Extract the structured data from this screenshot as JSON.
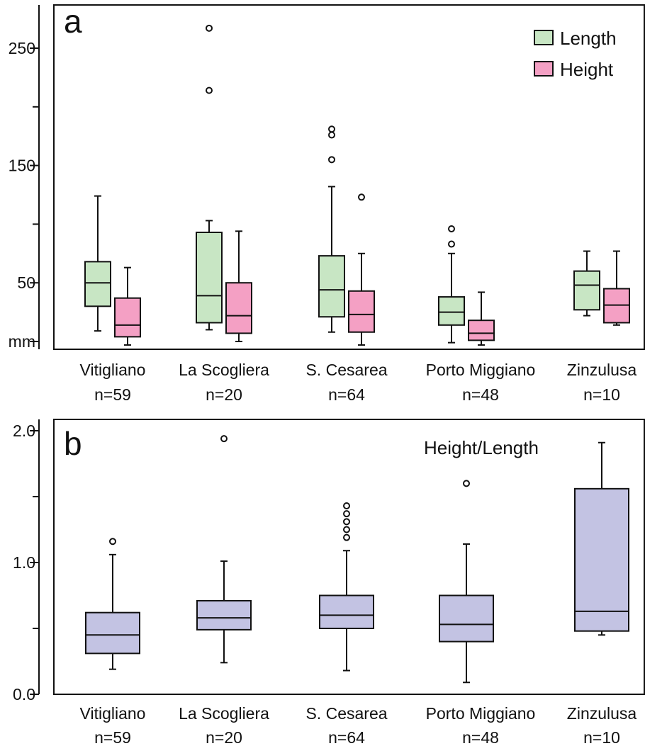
{
  "chart_data": [
    {
      "type": "box",
      "panel_label": "a",
      "yunit": "mm",
      "ylim": [
        0,
        280
      ],
      "ytick_labels": [
        "250",
        "150",
        "50",
        "mm"
      ],
      "categories": [
        "Vitigliano",
        "La Scogliera",
        "S. Cesarea",
        "Porto Miggiano",
        "Zinzulusa"
      ],
      "n_labels": [
        "n=59",
        "n=20",
        "n=64",
        "n=48",
        "n=10"
      ],
      "legend": {
        "position": "top-right"
      },
      "series": [
        {
          "name": "Length",
          "color": "#c8e6c4",
          "boxes": [
            {
              "min": 9,
              "q1": 30,
              "median": 50,
              "q3": 68,
              "max": 124
            },
            {
              "min": 10,
              "q1": 16,
              "median": 39,
              "q3": 93,
              "max": 103
            },
            {
              "min": 8,
              "q1": 21,
              "median": 44,
              "q3": 73,
              "max": 132
            },
            {
              "min": -1,
              "q1": 14,
              "median": 25,
              "q3": 38,
              "max": 75
            },
            {
              "min": 22,
              "q1": 27,
              "median": 48,
              "q3": 60,
              "max": 77
            }
          ],
          "outliers": [
            [],
            [
              267,
              214
            ],
            [
              181,
              176,
              155
            ],
            [
              96,
              83
            ],
            []
          ]
        },
        {
          "name": "Height",
          "color": "#f4a0c4",
          "boxes": [
            {
              "min": -3,
              "q1": 4,
              "median": 14,
              "q3": 37,
              "max": 63
            },
            {
              "min": 0,
              "q1": 7,
              "median": 22,
              "q3": 50,
              "max": 94
            },
            {
              "min": -3,
              "q1": 8,
              "median": 23,
              "q3": 43,
              "max": 75
            },
            {
              "min": -3,
              "q1": 1,
              "median": 7,
              "q3": 18,
              "max": 42
            },
            {
              "min": 14,
              "q1": 16,
              "median": 31,
              "q3": 45,
              "max": 77
            }
          ],
          "outliers": [
            [],
            [],
            [
              123
            ],
            [],
            []
          ]
        }
      ]
    },
    {
      "type": "box",
      "panel_label": "b",
      "annotation": "Height/Length",
      "ylim": [
        0,
        2.0
      ],
      "ytick_labels": [
        "2.0",
        "1.0",
        "0.0"
      ],
      "categories": [
        "Vitigliano",
        "La Scogliera",
        "S. Cesarea",
        "Porto Miggiano",
        "Zinzulusa"
      ],
      "n_labels": [
        "n=59",
        "n=20",
        "n=64",
        "n=48",
        "n=10"
      ],
      "series": [
        {
          "color": "#c3c3e3",
          "boxes": [
            {
              "min": 0.19,
              "q1": 0.31,
              "median": 0.45,
              "q3": 0.62,
              "max": 1.06
            },
            {
              "min": 0.24,
              "q1": 0.49,
              "median": 0.58,
              "q3": 0.71,
              "max": 1.01
            },
            {
              "min": 0.18,
              "q1": 0.5,
              "median": 0.6,
              "q3": 0.75,
              "max": 1.09
            },
            {
              "min": 0.09,
              "q1": 0.4,
              "median": 0.53,
              "q3": 0.75,
              "max": 1.14
            },
            {
              "min": 0.45,
              "q1": 0.48,
              "median": 0.63,
              "q3": 1.56,
              "max": 1.91
            }
          ],
          "outliers": [
            [
              1.16
            ],
            [
              1.94
            ],
            [
              1.43,
              1.37,
              1.31,
              1.25,
              1.19
            ],
            [
              1.6
            ],
            []
          ]
        }
      ]
    }
  ]
}
